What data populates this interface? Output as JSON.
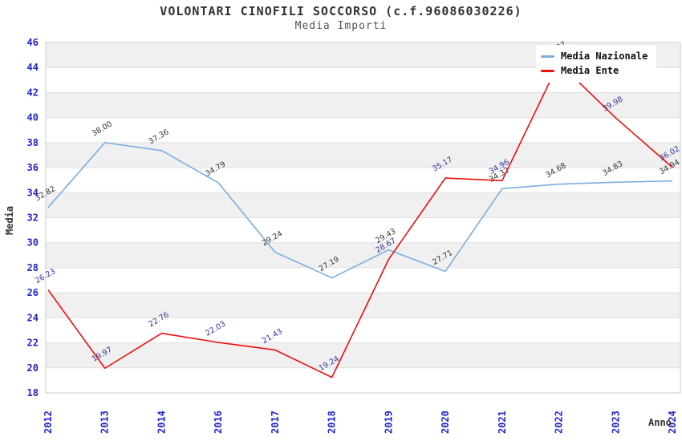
{
  "chart_data": {
    "type": "line",
    "title": "VOLONTARI CINOFILI SOCCORSO (c.f.96086030226)",
    "subtitle": "Media Importi",
    "xlabel": "Anno",
    "ylabel": "Media",
    "categories": [
      "2012",
      "2013",
      "2014",
      "2016",
      "2017",
      "2018",
      "2019",
      "2020",
      "2021",
      "2022",
      "2023",
      "2024"
    ],
    "ylim": [
      18,
      46
    ],
    "ytick_step": 2,
    "grid": true,
    "alternating_bands": true,
    "legend_position": "top-right",
    "series": [
      {
        "name": "Media Nazionale",
        "color": "#7aade0",
        "label_color": "#333333",
        "values": [
          32.82,
          38.0,
          37.36,
          34.79,
          29.24,
          27.19,
          29.43,
          27.71,
          34.32,
          34.68,
          34.83,
          34.94
        ]
      },
      {
        "name": "Media Ente",
        "color": "#ee0e0e",
        "label_color": "#333399",
        "values": [
          26.23,
          19.97,
          22.76,
          22.03,
          21.43,
          19.24,
          28.67,
          35.17,
          34.96,
          44.37,
          39.98,
          36.02
        ]
      }
    ],
    "colors": {
      "background": "#ffffff",
      "band": "#f0f0f0",
      "grid": "#e0e0e0",
      "plot_border": "#cccccc",
      "tick_label": "#2424cf",
      "axis_title": "#333333"
    }
  }
}
